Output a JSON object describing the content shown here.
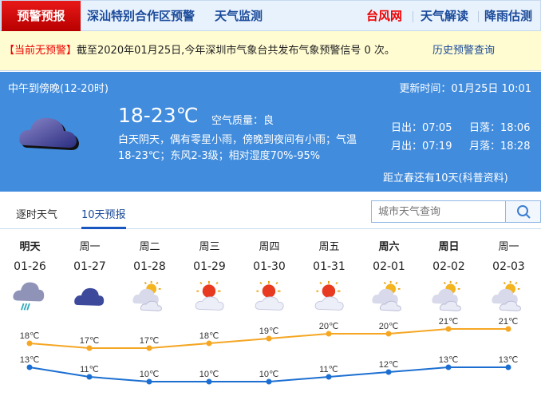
{
  "nav": {
    "active": "预警预报",
    "items": [
      "深汕特别合作区预警",
      "天气监测"
    ],
    "right": [
      "台风网",
      "天气解读",
      "降雨估测"
    ],
    "accent": "#e00000"
  },
  "alert": {
    "tag": "【当前无预警】",
    "text": "截至2020年01月25日,今年深圳市气象台共发布气象预警信号 0 次。",
    "history": "历史预警查询"
  },
  "today": {
    "period": "中午到傍晚(12-20时)",
    "updated": "更新时间：01月25日 10:01",
    "temp": "18-23℃",
    "aqi": "空气质量：良",
    "desc1": "白天阴天，偶有零星小雨，傍晚到夜间有小雨；气温",
    "desc2": "18-23℃；东风2-3级；相对湿度70%-95%",
    "sunrise": "日出：07:05",
    "sunset": "日落：18:06",
    "moonrise": "月出：07:19",
    "moonset": "月落：18:28",
    "solar_term": "距立春还有10天(科普资料)",
    "icon": "cloudy-icon"
  },
  "tabs": [
    "逐时天气",
    "10天预报"
  ],
  "search": {
    "placeholder": "城市天气查询"
  },
  "forecast": [
    {
      "day": "明天",
      "date": "01-26",
      "icon": "rain",
      "bold": true,
      "high": "18℃",
      "low": "13℃"
    },
    {
      "day": "周一",
      "date": "01-27",
      "icon": "cloudy",
      "high": "17℃",
      "low": "11℃"
    },
    {
      "day": "周二",
      "date": "01-28",
      "icon": "partly-cloudy",
      "high": "17℃",
      "low": "10℃"
    },
    {
      "day": "周三",
      "date": "01-29",
      "icon": "sunny-cloudy",
      "high": "18℃",
      "low": "10℃"
    },
    {
      "day": "周四",
      "date": "01-30",
      "icon": "sunny-cloudy",
      "high": "19℃",
      "low": "10℃"
    },
    {
      "day": "周五",
      "date": "01-31",
      "icon": "sunny-cloudy",
      "high": "20℃",
      "low": "11℃"
    },
    {
      "day": "周六",
      "date": "02-01",
      "icon": "partly-cloudy",
      "bold": true,
      "high": "20℃",
      "low": "12℃"
    },
    {
      "day": "周日",
      "date": "02-02",
      "icon": "partly-cloudy",
      "bold": true,
      "high": "21℃",
      "low": "13℃"
    },
    {
      "day": "周一",
      "date": "02-03",
      "icon": "partly-cloudy",
      "high": "21℃",
      "low": "13℃"
    }
  ],
  "chart_data": {
    "type": "line",
    "categories": [
      "01-26",
      "01-27",
      "01-28",
      "01-29",
      "01-30",
      "01-31",
      "02-01",
      "02-02",
      "02-03"
    ],
    "series": [
      {
        "values": [
          18,
          17,
          17,
          18,
          19,
          20,
          20,
          21,
          21
        ],
        "color": "#f5a623"
      },
      {
        "values": [
          13,
          11,
          10,
          10,
          10,
          11,
          12,
          13,
          13
        ],
        "color": "#1c6fd1"
      }
    ]
  }
}
